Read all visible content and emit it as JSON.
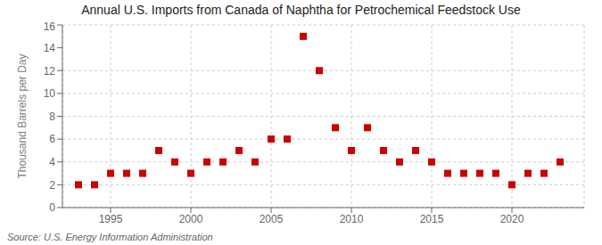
{
  "chart_data": {
    "type": "scatter",
    "title": "Annual U.S. Imports from Canada of Naphtha for Petrochemical Feedstock Use",
    "y_label": "Thousand Barrels per Day",
    "annotations": [
      "Source: U.S. Energy Information Administration"
    ],
    "x": [
      1993,
      1994,
      1995,
      1996,
      1997,
      1998,
      1999,
      2000,
      2001,
      2002,
      2003,
      2004,
      2005,
      2006,
      2007,
      2008,
      2009,
      2010,
      2011,
      2012,
      2013,
      2014,
      2015,
      2016,
      2017,
      2018,
      2019,
      2020,
      2021,
      2022,
      2023
    ],
    "values": [
      2,
      2,
      3,
      3,
      3,
      5,
      4,
      3,
      4,
      4,
      5,
      4,
      6,
      6,
      15,
      12,
      7,
      5,
      7,
      5,
      4,
      5,
      4,
      3,
      3,
      3,
      3,
      2,
      3,
      3,
      4
    ],
    "color": "#cc0000",
    "marker": "square",
    "xlim": [
      1992,
      2024.5
    ],
    "ylim": [
      0,
      16
    ],
    "xticks": [
      1995,
      2000,
      2005,
      2010,
      2015,
      2020
    ],
    "yticks": [
      0,
      2,
      4,
      6,
      8,
      10,
      12,
      14,
      16
    ],
    "grid": true
  }
}
